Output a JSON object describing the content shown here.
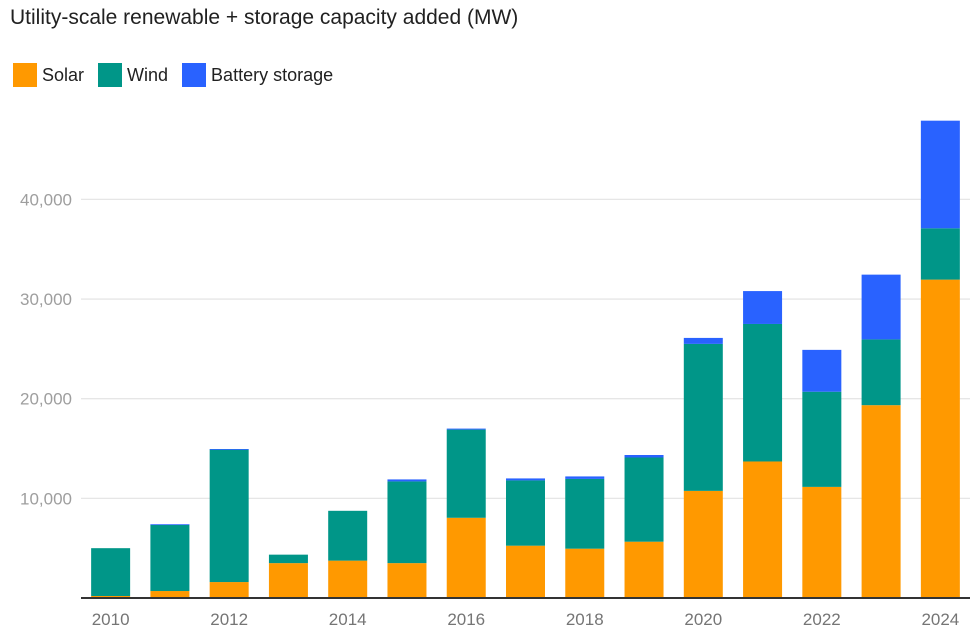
{
  "chart_data": {
    "type": "bar",
    "stacked": true,
    "title": "Utility-scale renewable + storage capacity added (MW)",
    "xlabel": "",
    "ylabel": "",
    "categories": [
      "2010",
      "2011",
      "2012",
      "2013",
      "2014",
      "2015",
      "2016",
      "2017",
      "2018",
      "2019",
      "2020",
      "2021",
      "2022",
      "2023",
      "2024"
    ],
    "x_tick_labels": [
      "2010",
      "2012",
      "2014",
      "2016",
      "2018",
      "2020",
      "2022",
      "2024"
    ],
    "series": [
      {
        "name": "Solar",
        "color": "#ff9900",
        "values": [
          200,
          700,
          1600,
          3500,
          3750,
          3500,
          8050,
          5250,
          4950,
          5650,
          10750,
          13700,
          11150,
          19350,
          31950
        ]
      },
      {
        "name": "Wind",
        "color": "#009688",
        "values": [
          4800,
          6650,
          13300,
          850,
          5000,
          8200,
          8850,
          6550,
          7000,
          8450,
          14750,
          13800,
          9550,
          6600,
          5150
        ]
      },
      {
        "name": "Battery storage",
        "color": "#2962ff",
        "values": [
          0,
          50,
          50,
          0,
          0,
          200,
          100,
          200,
          250,
          250,
          600,
          3300,
          4200,
          6500,
          10800
        ]
      }
    ],
    "y_ticks": [
      10000,
      20000,
      30000,
      40000
    ],
    "y_tick_labels": [
      "10,000",
      "20,000",
      "30,000",
      "40,000"
    ],
    "ylim": [
      0,
      48000
    ],
    "grid": true,
    "legend_position": "top-left"
  }
}
